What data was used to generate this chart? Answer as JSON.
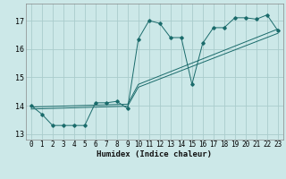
{
  "xlabel": "Humidex (Indice chaleur)",
  "bg_color": "#cce8e8",
  "grid_color": "#aacccc",
  "line_color": "#1a6b6b",
  "xlim": [
    -0.5,
    23.5
  ],
  "ylim": [
    12.8,
    17.6
  ],
  "yticks": [
    13,
    14,
    15,
    16,
    17
  ],
  "xticks": [
    0,
    1,
    2,
    3,
    4,
    5,
    6,
    7,
    8,
    9,
    10,
    11,
    12,
    13,
    14,
    15,
    16,
    17,
    18,
    19,
    20,
    21,
    22,
    23
  ],
  "series1": [
    14.0,
    13.7,
    13.3,
    13.3,
    13.3,
    13.3,
    14.1,
    14.1,
    14.15,
    13.9,
    16.35,
    17.0,
    16.9,
    16.4,
    16.4,
    14.75,
    16.2,
    16.75,
    16.75,
    17.1,
    17.1,
    17.05,
    17.2,
    16.65
  ],
  "line2": [
    [
      0,
      9,
      10,
      23
    ],
    [
      13.95,
      14.05,
      14.75,
      16.7
    ]
  ],
  "line3": [
    [
      0,
      9,
      10,
      23
    ],
    [
      13.88,
      13.98,
      14.65,
      16.55
    ]
  ]
}
